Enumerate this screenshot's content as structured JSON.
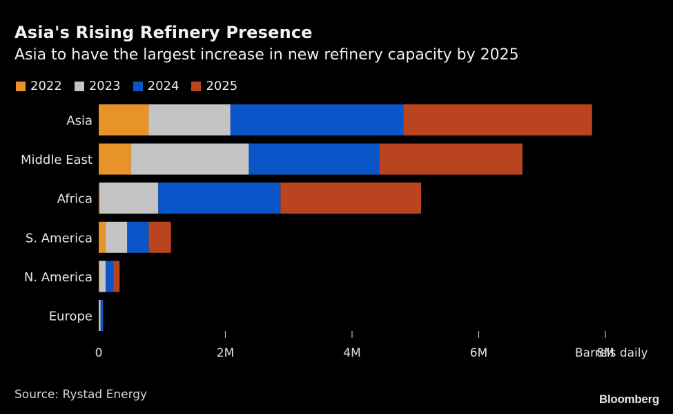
{
  "chart_data": {
    "type": "bar",
    "orientation": "horizontal",
    "stacked": true,
    "title": "Asia's Rising Refinery Presence",
    "subtitle": "Asia to have the largest increase in new refinery capacity by 2025",
    "categories": [
      "Asia",
      "Middle East",
      "Africa",
      "S. America",
      "N. America",
      "Europe"
    ],
    "series": [
      {
        "name": "2022",
        "color": "#e8922a",
        "values": [
          790000,
          510000,
          20000,
          110000,
          10000,
          0
        ]
      },
      {
        "name": "2023",
        "color": "#c4c4c4",
        "values": [
          1290000,
          1860000,
          920000,
          340000,
          100000,
          30000
        ]
      },
      {
        "name": "2024",
        "color": "#0a55c7",
        "values": [
          2730000,
          2060000,
          1930000,
          340000,
          120000,
          40000
        ]
      },
      {
        "name": "2025",
        "color": "#bb4420",
        "values": [
          2980000,
          2260000,
          2220000,
          350000,
          100000,
          0
        ]
      }
    ],
    "xlim": [
      0,
      8000000
    ],
    "xticks": [
      0,
      2000000,
      4000000,
      6000000,
      8000000
    ],
    "xtick_labels": [
      "0",
      "2M",
      "4M",
      "6M",
      "8M"
    ],
    "xlabel": "Barrels daily",
    "ylabel": "",
    "grid": false,
    "legend_position": "top-left"
  },
  "footer": {
    "source": "Source: Rystad Energy",
    "brand": "Bloomberg"
  }
}
